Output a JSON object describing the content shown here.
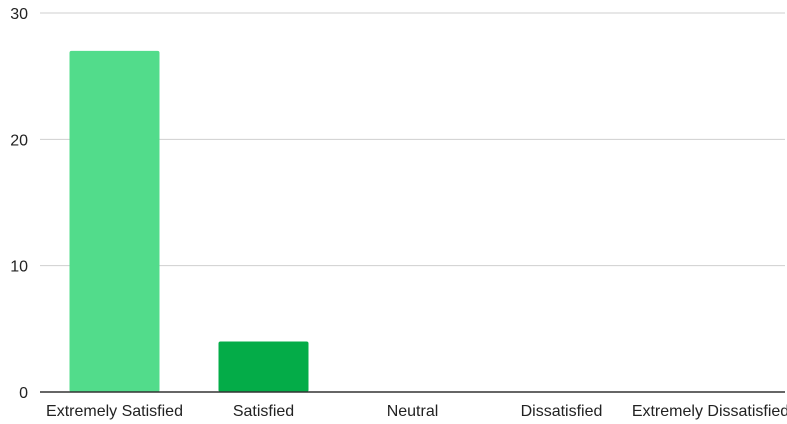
{
  "chart_data": {
    "type": "bar",
    "categories": [
      "Extremely Satisfied",
      "Satisfied",
      "Neutral",
      "Dissatisfied",
      "Extremely Dissatisfied"
    ],
    "values": [
      27,
      4,
      0,
      0,
      0
    ],
    "colors": [
      "#52dc8b",
      "#04ac48",
      "#04ac48",
      "#04ac48",
      "#04ac48"
    ],
    "title": "",
    "xlabel": "",
    "ylabel": "",
    "ylim": [
      0,
      30
    ],
    "yticks": [
      0,
      10,
      20,
      30
    ],
    "grid": true,
    "legend": "none"
  }
}
